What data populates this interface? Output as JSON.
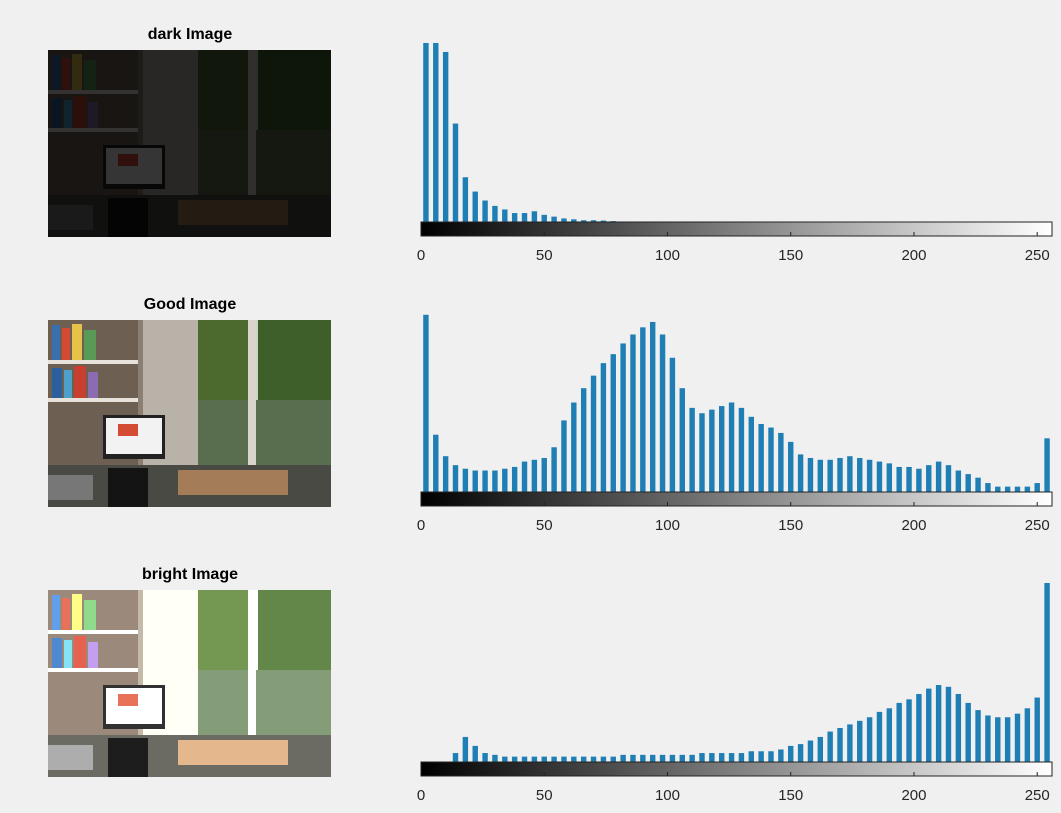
{
  "chart_data": [
    {
      "type": "histogram",
      "title": "dark Image",
      "color": "#1f7fb4",
      "bins": [
        0,
        4,
        8,
        12,
        16,
        20,
        24,
        28,
        32,
        36,
        40,
        44,
        48,
        52,
        56,
        60,
        64,
        68,
        72,
        76,
        80,
        84,
        88,
        92,
        96,
        100,
        104,
        108,
        112,
        116,
        120,
        124,
        128,
        132,
        136,
        140,
        144,
        148,
        152,
        156,
        160,
        164,
        168,
        172,
        176,
        180,
        184,
        188,
        192,
        196,
        200,
        204,
        208,
        212,
        216,
        220,
        224,
        228,
        232,
        236,
        240,
        244,
        248,
        252,
        256
      ],
      "values": [
        100,
        100,
        95,
        55,
        25,
        17,
        12,
        9,
        7,
        5,
        5,
        6,
        4,
        3,
        2,
        1.5,
        1,
        1,
        0.8,
        0.5,
        0,
        0,
        0,
        0,
        0,
        0,
        0,
        0,
        0,
        0,
        0,
        0,
        0,
        0,
        0,
        0,
        0,
        0,
        0,
        0,
        0,
        0,
        0,
        0,
        0,
        0,
        0,
        0,
        0,
        0,
        0,
        0,
        0,
        0,
        0,
        0,
        0,
        0,
        0,
        0,
        0,
        0,
        0,
        0
      ],
      "xlim": [
        0,
        256
      ],
      "ylim": [
        0,
        100
      ],
      "xticks": [
        0,
        50,
        100,
        150,
        200,
        250
      ]
    },
    {
      "type": "histogram",
      "title": "Good Image",
      "color": "#1f7fb4",
      "bins": [
        0,
        4,
        8,
        12,
        16,
        20,
        24,
        28,
        32,
        36,
        40,
        44,
        48,
        52,
        56,
        60,
        64,
        68,
        72,
        76,
        80,
        84,
        88,
        92,
        96,
        100,
        104,
        108,
        112,
        116,
        120,
        124,
        128,
        132,
        136,
        140,
        144,
        148,
        152,
        156,
        160,
        164,
        168,
        172,
        176,
        180,
        184,
        188,
        192,
        196,
        200,
        204,
        208,
        212,
        216,
        220,
        224,
        228,
        232,
        236,
        240,
        244,
        248,
        252,
        256
      ],
      "values": [
        99,
        32,
        20,
        15,
        13,
        12,
        12,
        12,
        13,
        14,
        17,
        18,
        19,
        25,
        40,
        50,
        58,
        65,
        72,
        77,
        83,
        88,
        92,
        95,
        88,
        75,
        58,
        47,
        44,
        46,
        48,
        50,
        47,
        42,
        38,
        36,
        33,
        28,
        21,
        19,
        18,
        18,
        19,
        20,
        19,
        18,
        17,
        16,
        14,
        14,
        13,
        15,
        17,
        15,
        12,
        10,
        8,
        5,
        3,
        3,
        3,
        3,
        5,
        30
      ],
      "xlim": [
        0,
        256
      ],
      "ylim": [
        0,
        100
      ],
      "xticks": [
        0,
        50,
        100,
        150,
        200,
        250
      ]
    },
    {
      "type": "histogram",
      "title": "bright Image",
      "color": "#1f7fb4",
      "bins": [
        0,
        4,
        8,
        12,
        16,
        20,
        24,
        28,
        32,
        36,
        40,
        44,
        48,
        52,
        56,
        60,
        64,
        68,
        72,
        76,
        80,
        84,
        88,
        92,
        96,
        100,
        104,
        108,
        112,
        116,
        120,
        124,
        128,
        132,
        136,
        140,
        144,
        148,
        152,
        156,
        160,
        164,
        168,
        172,
        176,
        180,
        184,
        188,
        192,
        196,
        200,
        204,
        208,
        212,
        216,
        220,
        224,
        228,
        232,
        236,
        240,
        244,
        248,
        252,
        256
      ],
      "values": [
        0,
        0,
        0,
        5,
        14,
        9,
        5,
        4,
        3,
        3,
        3,
        3,
        3,
        3,
        3,
        3,
        3,
        3,
        3,
        3,
        4,
        4,
        4,
        4,
        4,
        4,
        4,
        4,
        5,
        5,
        5,
        5,
        5,
        6,
        6,
        6,
        7,
        9,
        10,
        12,
        14,
        17,
        19,
        21,
        23,
        25,
        28,
        30,
        33,
        35,
        38,
        41,
        43,
        42,
        38,
        33,
        29,
        26,
        25,
        25,
        27,
        30,
        36,
        100
      ],
      "xlim": [
        0,
        256
      ],
      "ylim": [
        0,
        100
      ],
      "xticks": [
        0,
        50,
        100,
        150,
        200,
        250
      ]
    }
  ]
}
